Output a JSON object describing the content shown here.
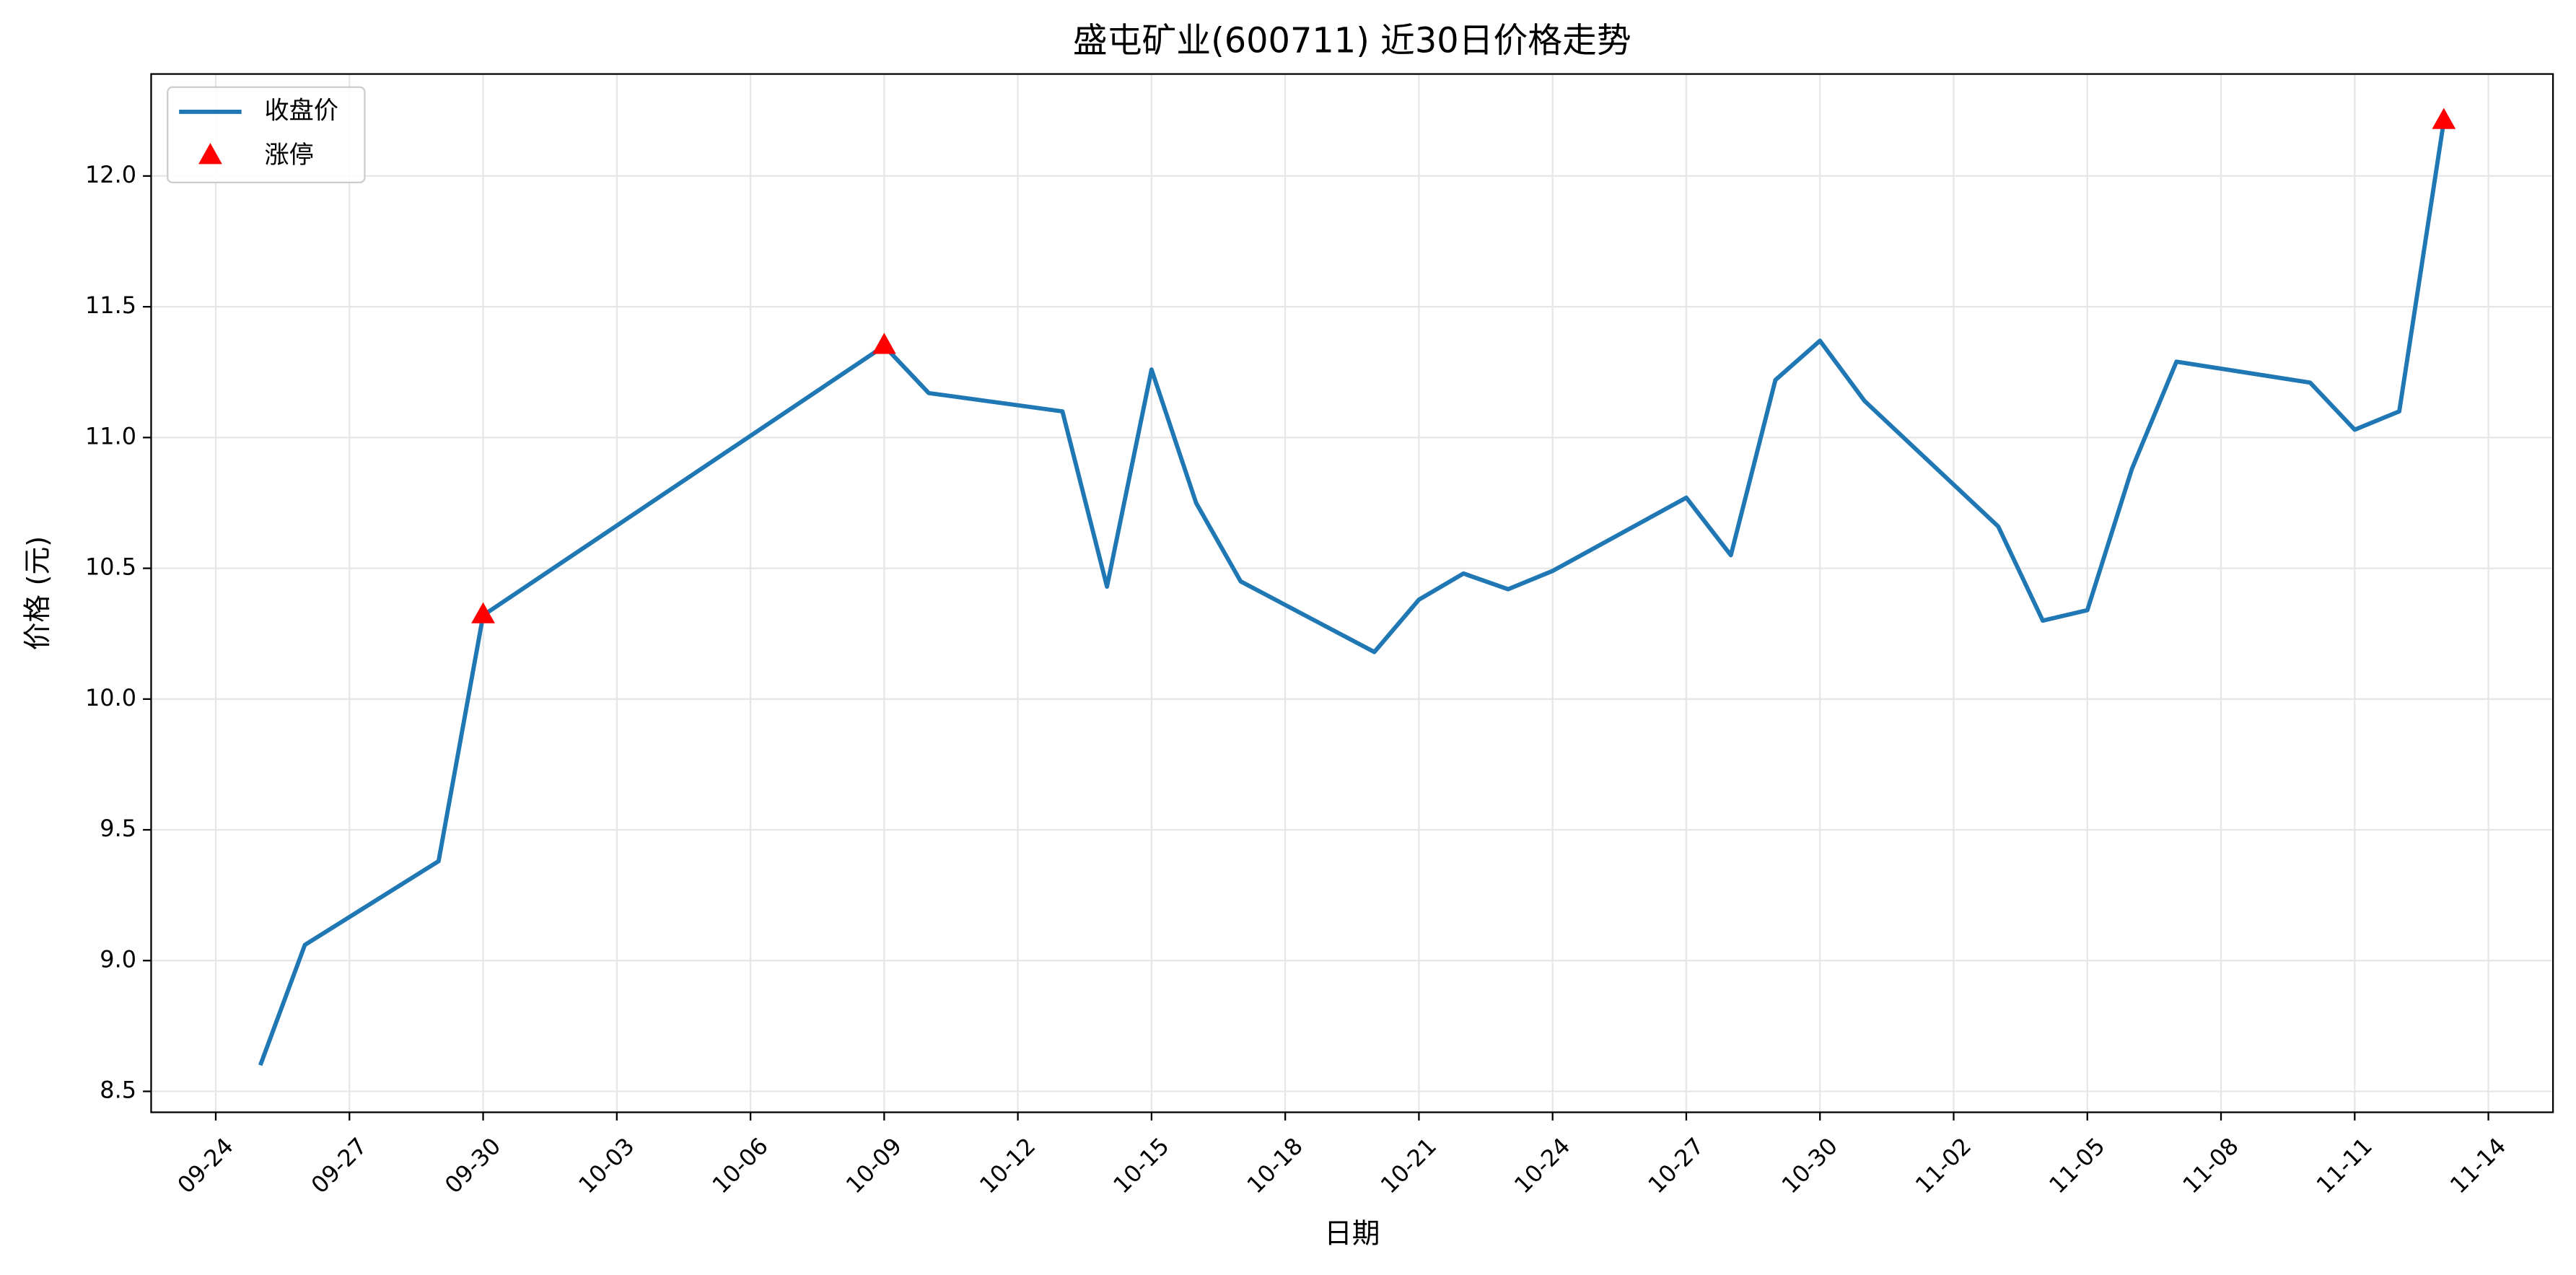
{
  "chart_data": {
    "type": "line",
    "title": "盛屯矿业(600711) 近30日价格走势",
    "x_label": "日期",
    "y_label": "价格 (元)",
    "series": [
      {
        "name": "收盘价",
        "type": "line",
        "color": "#1f77b4",
        "x": [
          "09-25",
          "09-26",
          "09-29",
          "09-30",
          "10-09",
          "10-10",
          "10-13",
          "10-14",
          "10-15",
          "10-16",
          "10-17",
          "10-20",
          "10-21",
          "10-22",
          "10-23",
          "10-24",
          "10-27",
          "10-28",
          "10-29",
          "10-30",
          "10-31",
          "11-03",
          "11-04",
          "11-05",
          "11-06",
          "11-07",
          "11-10",
          "11-11",
          "11-12",
          "11-13"
        ],
        "values": [
          8.6,
          9.06,
          9.38,
          10.32,
          11.35,
          11.17,
          11.1,
          10.43,
          11.26,
          10.75,
          10.45,
          10.18,
          10.38,
          10.48,
          10.42,
          10.49,
          10.77,
          10.55,
          11.22,
          11.37,
          11.14,
          10.66,
          10.3,
          10.34,
          10.88,
          11.29,
          11.21,
          11.03,
          11.1,
          12.21
        ]
      },
      {
        "name": "涨停",
        "type": "scatter",
        "color": "#ff0000",
        "x": [
          "09-30",
          "10-09",
          "11-13"
        ],
        "values": [
          10.32,
          11.35,
          12.21
        ]
      }
    ],
    "xticks": [
      "09-24",
      "09-27",
      "09-30",
      "10-03",
      "10-06",
      "10-09",
      "10-12",
      "10-15",
      "10-18",
      "10-21",
      "10-24",
      "10-27",
      "10-30",
      "11-02",
      "11-05",
      "11-08",
      "11-11",
      "11-14"
    ],
    "ylim": [
      8.42,
      12.39
    ],
    "yticks": [
      8.5,
      {
        "value": 9,
        "label": "9.0"
      },
      9.5,
      {
        "value": 10,
        "label": "10.0"
      },
      10.5,
      {
        "value": 11,
        "label": "11.0"
      },
      11.5,
      {
        "value": 12,
        "label": "12.0"
      }
    ],
    "grid": true,
    "legend": "upper left"
  }
}
